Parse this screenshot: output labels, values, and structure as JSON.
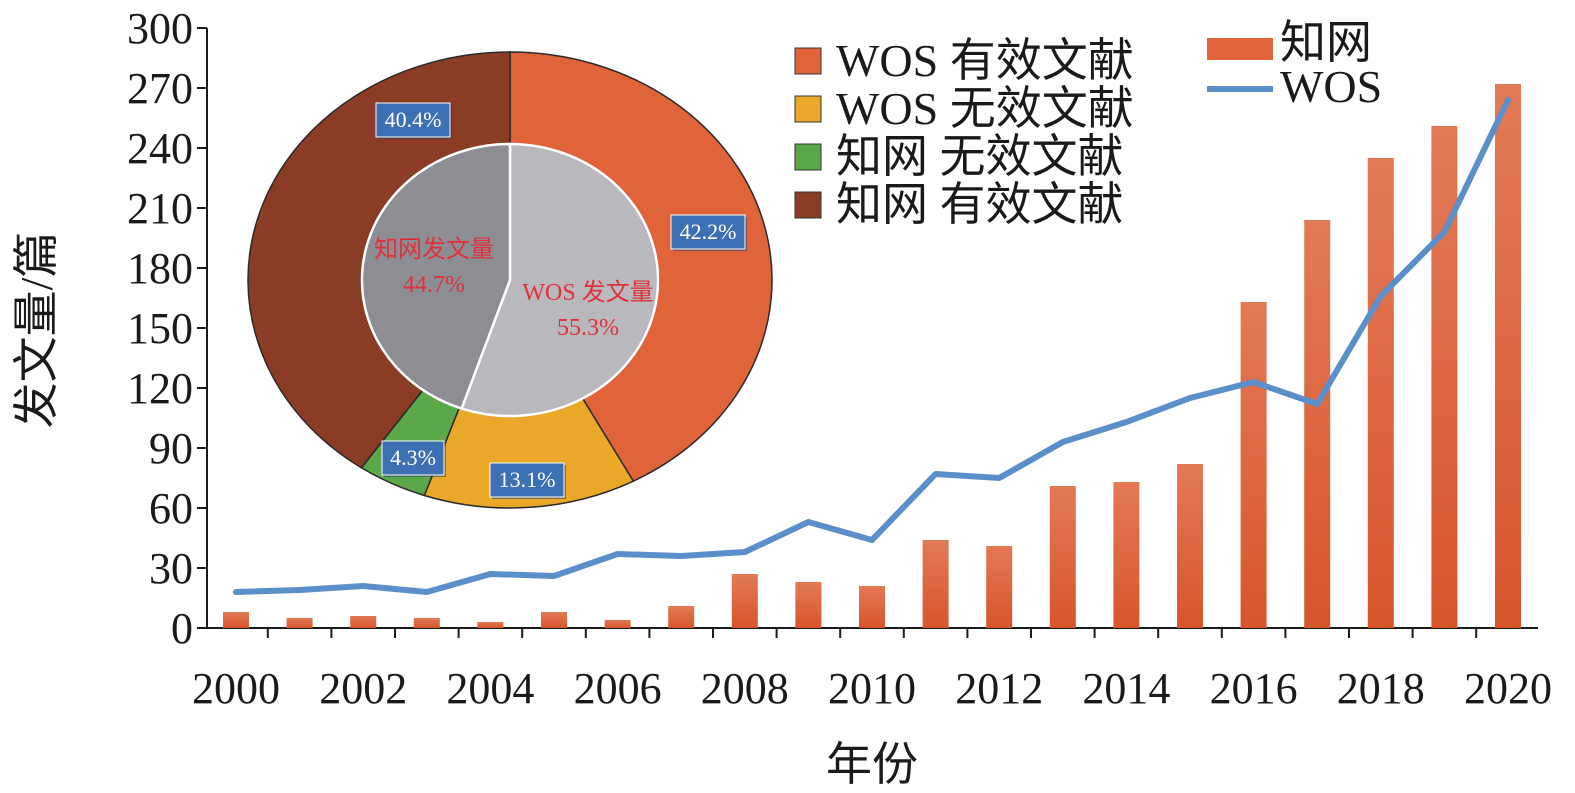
{
  "chart_data": [
    {
      "type": "bar",
      "x": [
        2000,
        2001,
        2002,
        2003,
        2004,
        2005,
        2006,
        2007,
        2008,
        2009,
        2010,
        2011,
        2012,
        2013,
        2014,
        2015,
        2016,
        2017,
        2018,
        2019,
        2020
      ],
      "xticks": [
        "2000",
        "2002",
        "2004",
        "2006",
        "2008",
        "2010",
        "2012",
        "2014",
        "2016",
        "2018",
        "2020"
      ],
      "series": [
        {
          "name": "知网",
          "kind": "bar",
          "color": "#e0633a",
          "values": [
            8,
            5,
            6,
            5,
            3,
            8,
            4,
            11,
            27,
            23,
            21,
            44,
            41,
            71,
            73,
            82,
            163,
            204,
            235,
            251,
            272
          ]
        },
        {
          "name": "WOS",
          "kind": "line",
          "color": "#5b8fc9",
          "values": [
            18,
            19,
            21,
            18,
            27,
            26,
            37,
            36,
            38,
            53,
            44,
            77,
            75,
            93,
            103,
            115,
            123,
            112,
            166,
            198,
            264
          ]
        }
      ],
      "ylim": [
        0,
        300
      ],
      "yticks": [
        "0",
        "30",
        "60",
        "90",
        "120",
        "150",
        "180",
        "210",
        "240",
        "270",
        "300"
      ],
      "xlabel": "年份",
      "ylabel": "发文量/篇",
      "grid": false,
      "legend": "top-right"
    },
    {
      "type": "pie",
      "outer": {
        "slices": [
          {
            "name": "WOS 有效文献",
            "value": 42.2,
            "label": "42.2%",
            "color": "#e0633a"
          },
          {
            "name": "WOS 无效文献",
            "value": 13.1,
            "label": "13.1%",
            "color": "#e9a827"
          },
          {
            "name": "知网 无效文献",
            "value": 4.3,
            "label": "4.3%",
            "color": "#5aa84a"
          },
          {
            "name": "知网 有效文献",
            "value": 40.4,
            "label": "40.4%",
            "color": "#8a3d24"
          }
        ]
      },
      "inner": {
        "slices": [
          {
            "name": "WOS 发文量",
            "value": 55.3,
            "label": "55.3%",
            "color": "#b9b8bc"
          },
          {
            "name": "知网发文量",
            "value": 44.7,
            "label": "44.7%",
            "color": "#8d8d94"
          }
        ]
      },
      "legend": "right"
    }
  ]
}
